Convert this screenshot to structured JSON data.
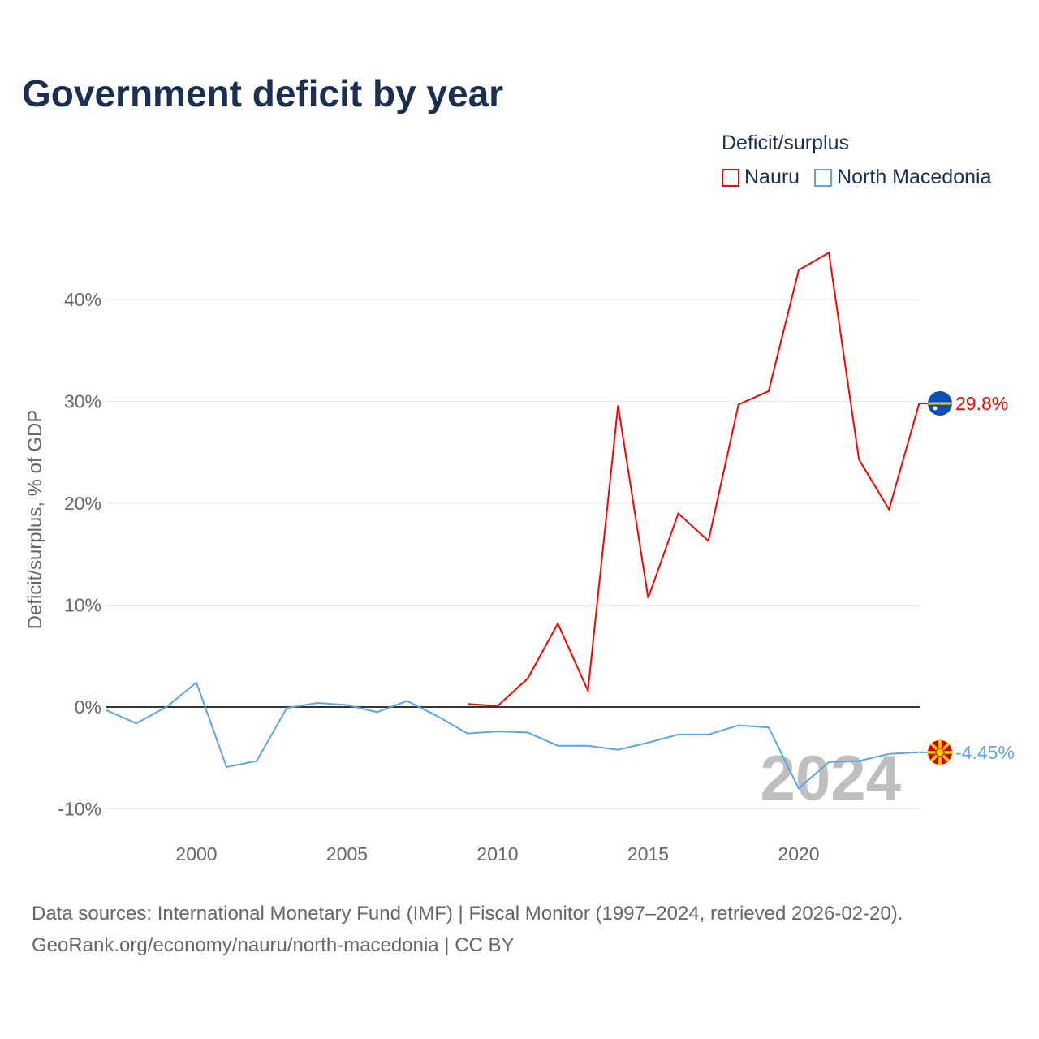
{
  "chart_data": {
    "type": "line",
    "title": "Government deficit by year",
    "ylabel": "Deficit/surplus, % of GDP",
    "xlabel": "",
    "xlim": [
      1997,
      2024
    ],
    "ylim": [
      -11,
      47
    ],
    "x_ticks": [
      2000,
      2005,
      2010,
      2015,
      2020
    ],
    "x_tick_labels": [
      "2000",
      "2005",
      "2010",
      "2015",
      "2020"
    ],
    "y_ticks": [
      -10,
      0,
      10,
      20,
      30,
      40
    ],
    "y_tick_labels": [
      "-10%",
      "0%",
      "10%",
      "20%",
      "30%",
      "40%"
    ],
    "grid": true,
    "legend_title": "Deficit/surplus",
    "legend_placement": "top-right",
    "watermark_year": "2024",
    "series": [
      {
        "name": "Nauru",
        "color": "#ff0000",
        "end_label": "29.8%",
        "flag": "nauru-flag",
        "x": [
          2009,
          2010,
          2011,
          2012,
          2013,
          2014,
          2015,
          2016,
          2017,
          2018,
          2019,
          2020,
          2021,
          2022,
          2023,
          2024
        ],
        "values": [
          0.3,
          0.1,
          2.8,
          8.2,
          1.6,
          29.6,
          10.7,
          19.0,
          16.3,
          29.7,
          31.0,
          42.9,
          44.6,
          24.3,
          19.4,
          29.8
        ]
      },
      {
        "name": "North Macedonia",
        "color": "#5aa5ea",
        "end_label": "-4.45%",
        "flag": "north-macedonia-flag",
        "x": [
          1997,
          1998,
          1999,
          2000,
          2001,
          2002,
          2003,
          2004,
          2005,
          2006,
          2007,
          2008,
          2009,
          2010,
          2011,
          2012,
          2013,
          2014,
          2015,
          2016,
          2017,
          2018,
          2019,
          2020,
          2021,
          2022,
          2023,
          2024
        ],
        "values": [
          -0.3,
          -1.6,
          0.0,
          2.4,
          -5.9,
          -5.3,
          -0.1,
          0.4,
          0.2,
          -0.5,
          0.6,
          -0.9,
          -2.6,
          -2.4,
          -2.5,
          -3.8,
          -3.8,
          -4.2,
          -3.5,
          -2.7,
          -2.7,
          -1.8,
          -2.0,
          -8.0,
          -5.4,
          -5.3,
          -4.6,
          -4.45
        ]
      }
    ]
  },
  "source": {
    "line1": "Data sources: International Monetary Fund (IMF) | Fiscal Monitor (1997–2024, retrieved 2026-02-20).",
    "line2": "GeoRank.org/economy/nauru/north-macedonia | CC BY"
  }
}
